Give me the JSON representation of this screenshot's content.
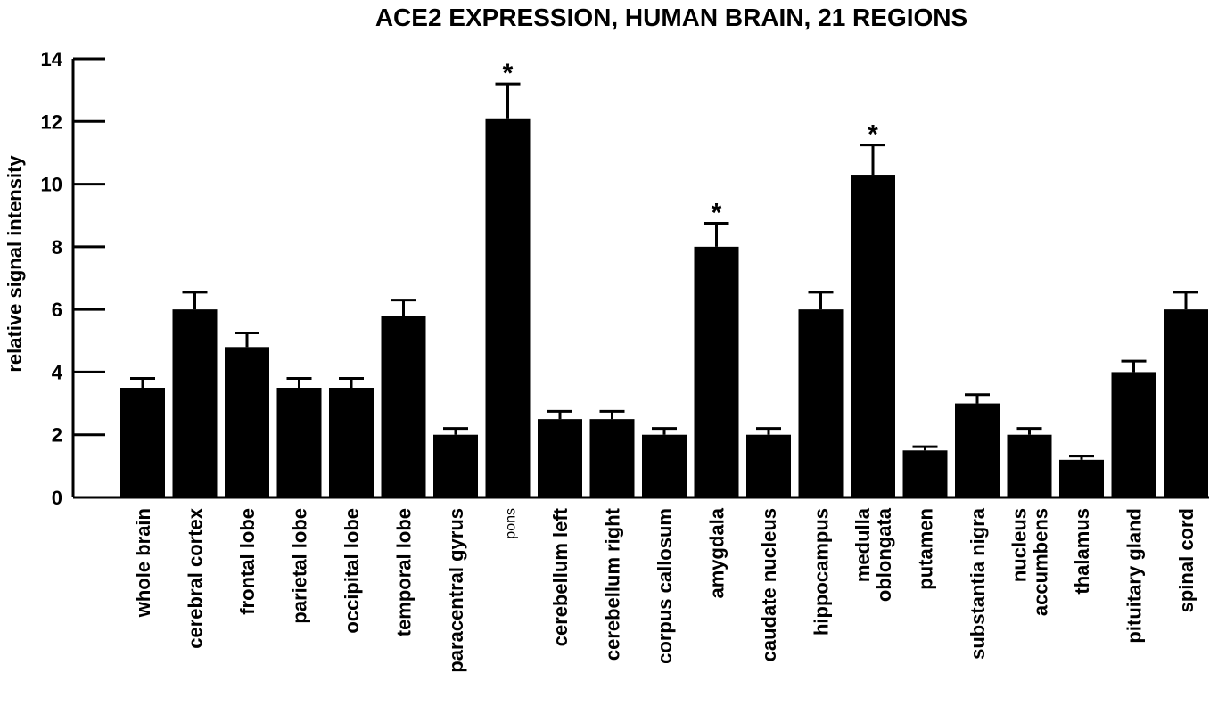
{
  "chart_data": {
    "type": "bar",
    "title": "ACE2 EXPRESSION, HUMAN BRAIN, 21 REGIONS",
    "xlabel": "",
    "ylabel": "relative signal intensity",
    "ylim": [
      0,
      14
    ],
    "yticks": [
      0,
      2,
      4,
      6,
      8,
      10,
      12,
      14
    ],
    "grid": false,
    "categories": [
      [
        "whole brain"
      ],
      [
        "cerebral cortex"
      ],
      [
        "frontal lobe"
      ],
      [
        "parietal lobe"
      ],
      [
        "occipital lobe"
      ],
      [
        "temporal lobe"
      ],
      [
        "paracentral gyrus"
      ],
      [
        "pons"
      ],
      [
        "cerebellum left"
      ],
      [
        "cerebellum right"
      ],
      [
        "corpus callosum"
      ],
      [
        "amygdala"
      ],
      [
        "caudate nucleus"
      ],
      [
        "hippocampus"
      ],
      [
        "medulla",
        "oblongata"
      ],
      [
        "putamen"
      ],
      [
        "substantia nigra"
      ],
      [
        "nucleus",
        "accumbens"
      ],
      [
        "thalamus"
      ],
      [
        "pituitary gland"
      ],
      [
        "spinal cord"
      ]
    ],
    "values": [
      3.5,
      6.0,
      4.8,
      3.5,
      3.5,
      5.8,
      2.0,
      12.1,
      2.5,
      2.5,
      2.0,
      8.0,
      2.0,
      6.0,
      10.3,
      1.5,
      3.0,
      2.0,
      1.2,
      4.0,
      6.0
    ],
    "error": [
      0.3,
      0.55,
      0.45,
      0.3,
      0.3,
      0.5,
      0.2,
      1.1,
      0.25,
      0.25,
      0.2,
      0.75,
      0.2,
      0.55,
      0.95,
      0.12,
      0.28,
      0.2,
      0.12,
      0.35,
      0.55
    ],
    "annotations": [
      {
        "index": 7,
        "text": "*"
      },
      {
        "index": 11,
        "text": "*"
      },
      {
        "index": 14,
        "text": "*"
      }
    ],
    "bar_color": "#000000"
  }
}
